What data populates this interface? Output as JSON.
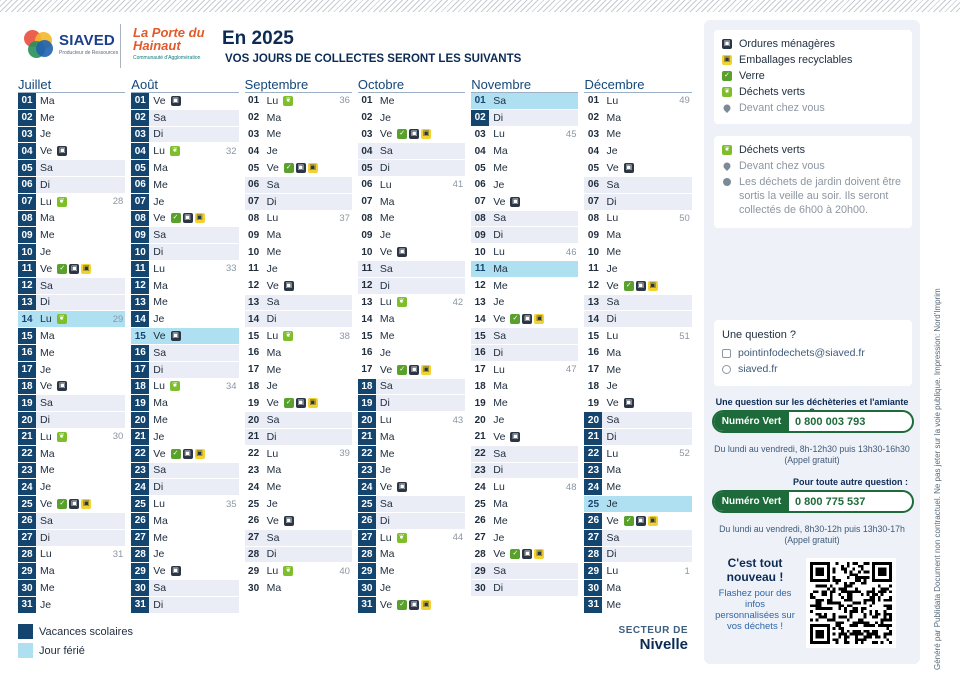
{
  "header": {
    "siaved_name": "SIAVED",
    "siaved_tagline": "Producteur de Ressources",
    "porte_title": "La Porte du Hainaut",
    "porte_sub": "Communauté d'Agglomération",
    "title": "En 2025",
    "subtitle": "VOS JOURS DE COLLECTES SERONT LES SUIVANTS"
  },
  "colors": {
    "vacances": "#14456f",
    "ferie": "#aee0f2",
    "weekend": "#eaecf6",
    "om": "#2b3544",
    "emb": "#f2d22e",
    "verre": "#5aa02c",
    "dv": "#7fbe2b"
  },
  "months": [
    {
      "name": "Juillet",
      "days": [
        [
          "01",
          "Ma",
          "",
          ""
        ],
        [
          "02",
          "Me",
          "",
          ""
        ],
        [
          "03",
          "Je",
          "",
          ""
        ],
        [
          "04",
          "Ve",
          "",
          "O"
        ],
        [
          "05",
          "Sa",
          "",
          ""
        ],
        [
          "06",
          "Di",
          "",
          ""
        ],
        [
          "07",
          "Lu",
          "28",
          "D"
        ],
        [
          "08",
          "Ma",
          "",
          ""
        ],
        [
          "09",
          "Me",
          "",
          ""
        ],
        [
          "10",
          "Je",
          "",
          ""
        ],
        [
          "11",
          "Ve",
          "",
          "VOE"
        ],
        [
          "12",
          "Sa",
          "",
          ""
        ],
        [
          "13",
          "Di",
          "",
          ""
        ],
        [
          "14",
          "Lu",
          "29",
          "D"
        ],
        [
          "15",
          "Ma",
          "",
          ""
        ],
        [
          "16",
          "Me",
          "",
          ""
        ],
        [
          "17",
          "Je",
          "",
          ""
        ],
        [
          "18",
          "Ve",
          "",
          "O"
        ],
        [
          "19",
          "Sa",
          "",
          ""
        ],
        [
          "20",
          "Di",
          "",
          ""
        ],
        [
          "21",
          "Lu",
          "30",
          "D"
        ],
        [
          "22",
          "Ma",
          "",
          ""
        ],
        [
          "23",
          "Me",
          "",
          ""
        ],
        [
          "24",
          "Je",
          "",
          ""
        ],
        [
          "25",
          "Ve",
          "",
          "VOE"
        ],
        [
          "26",
          "Sa",
          "",
          ""
        ],
        [
          "27",
          "Di",
          "",
          ""
        ],
        [
          "28",
          "Lu",
          "31",
          ""
        ],
        [
          "29",
          "Ma",
          "",
          ""
        ],
        [
          "30",
          "Me",
          "",
          ""
        ],
        [
          "31",
          "Je",
          "",
          ""
        ]
      ]
    },
    {
      "name": "Août",
      "days": [
        [
          "01",
          "Ve",
          "",
          "O"
        ],
        [
          "02",
          "Sa",
          "",
          ""
        ],
        [
          "03",
          "Di",
          "",
          ""
        ],
        [
          "04",
          "Lu",
          "32",
          "D"
        ],
        [
          "05",
          "Ma",
          "",
          ""
        ],
        [
          "06",
          "Me",
          "",
          ""
        ],
        [
          "07",
          "Je",
          "",
          ""
        ],
        [
          "08",
          "Ve",
          "",
          "VOE"
        ],
        [
          "09",
          "Sa",
          "",
          ""
        ],
        [
          "10",
          "Di",
          "",
          ""
        ],
        [
          "11",
          "Lu",
          "33",
          ""
        ],
        [
          "12",
          "Ma",
          "",
          ""
        ],
        [
          "13",
          "Me",
          "",
          ""
        ],
        [
          "14",
          "Je",
          "",
          ""
        ],
        [
          "15",
          "Ve",
          "",
          "O"
        ],
        [
          "16",
          "Sa",
          "",
          ""
        ],
        [
          "17",
          "Di",
          "",
          ""
        ],
        [
          "18",
          "Lu",
          "34",
          "D"
        ],
        [
          "19",
          "Ma",
          "",
          ""
        ],
        [
          "20",
          "Me",
          "",
          ""
        ],
        [
          "21",
          "Je",
          "",
          ""
        ],
        [
          "22",
          "Ve",
          "",
          "VOE"
        ],
        [
          "23",
          "Sa",
          "",
          ""
        ],
        [
          "24",
          "Di",
          "",
          ""
        ],
        [
          "25",
          "Lu",
          "35",
          ""
        ],
        [
          "26",
          "Ma",
          "",
          ""
        ],
        [
          "27",
          "Me",
          "",
          ""
        ],
        [
          "28",
          "Je",
          "",
          ""
        ],
        [
          "29",
          "Ve",
          "",
          "O"
        ],
        [
          "30",
          "Sa",
          "",
          ""
        ],
        [
          "31",
          "Di",
          "",
          ""
        ]
      ]
    },
    {
      "name": "Septembre",
      "days": [
        [
          "01",
          "Lu",
          "36",
          "D"
        ],
        [
          "02",
          "Ma",
          "",
          ""
        ],
        [
          "03",
          "Me",
          "",
          ""
        ],
        [
          "04",
          "Je",
          "",
          ""
        ],
        [
          "05",
          "Ve",
          "",
          "VOE"
        ],
        [
          "06",
          "Sa",
          "",
          ""
        ],
        [
          "07",
          "Di",
          "",
          ""
        ],
        [
          "08",
          "Lu",
          "37",
          ""
        ],
        [
          "09",
          "Ma",
          "",
          ""
        ],
        [
          "10",
          "Me",
          "",
          ""
        ],
        [
          "11",
          "Je",
          "",
          ""
        ],
        [
          "12",
          "Ve",
          "",
          "O"
        ],
        [
          "13",
          "Sa",
          "",
          ""
        ],
        [
          "14",
          "Di",
          "",
          ""
        ],
        [
          "15",
          "Lu",
          "38",
          "D"
        ],
        [
          "16",
          "Ma",
          "",
          ""
        ],
        [
          "17",
          "Me",
          "",
          ""
        ],
        [
          "18",
          "Je",
          "",
          ""
        ],
        [
          "19",
          "Ve",
          "",
          "VOE"
        ],
        [
          "20",
          "Sa",
          "",
          ""
        ],
        [
          "21",
          "Di",
          "",
          ""
        ],
        [
          "22",
          "Lu",
          "39",
          ""
        ],
        [
          "23",
          "Ma",
          "",
          ""
        ],
        [
          "24",
          "Me",
          "",
          ""
        ],
        [
          "25",
          "Je",
          "",
          ""
        ],
        [
          "26",
          "Ve",
          "",
          "O"
        ],
        [
          "27",
          "Sa",
          "",
          ""
        ],
        [
          "28",
          "Di",
          "",
          ""
        ],
        [
          "29",
          "Lu",
          "40",
          "D"
        ],
        [
          "30",
          "Ma",
          "",
          ""
        ]
      ]
    },
    {
      "name": "Octobre",
      "days": [
        [
          "01",
          "Me",
          "",
          ""
        ],
        [
          "02",
          "Je",
          "",
          ""
        ],
        [
          "03",
          "Ve",
          "",
          "VOE"
        ],
        [
          "04",
          "Sa",
          "",
          ""
        ],
        [
          "05",
          "Di",
          "",
          ""
        ],
        [
          "06",
          "Lu",
          "41",
          ""
        ],
        [
          "07",
          "Ma",
          "",
          ""
        ],
        [
          "08",
          "Me",
          "",
          ""
        ],
        [
          "09",
          "Je",
          "",
          ""
        ],
        [
          "10",
          "Ve",
          "",
          "O"
        ],
        [
          "11",
          "Sa",
          "",
          ""
        ],
        [
          "12",
          "Di",
          "",
          ""
        ],
        [
          "13",
          "Lu",
          "42",
          "D"
        ],
        [
          "14",
          "Ma",
          "",
          ""
        ],
        [
          "15",
          "Me",
          "",
          ""
        ],
        [
          "16",
          "Je",
          "",
          ""
        ],
        [
          "17",
          "Ve",
          "",
          "VOE"
        ],
        [
          "18",
          "Sa",
          "",
          ""
        ],
        [
          "19",
          "Di",
          "",
          ""
        ],
        [
          "20",
          "Lu",
          "43",
          ""
        ],
        [
          "21",
          "Ma",
          "",
          ""
        ],
        [
          "22",
          "Me",
          "",
          ""
        ],
        [
          "23",
          "Je",
          "",
          ""
        ],
        [
          "24",
          "Ve",
          "",
          "O"
        ],
        [
          "25",
          "Sa",
          "",
          ""
        ],
        [
          "26",
          "Di",
          "",
          ""
        ],
        [
          "27",
          "Lu",
          "44",
          "D"
        ],
        [
          "28",
          "Ma",
          "",
          ""
        ],
        [
          "29",
          "Me",
          "",
          ""
        ],
        [
          "30",
          "Je",
          "",
          ""
        ],
        [
          "31",
          "Ve",
          "",
          "VOE"
        ]
      ]
    },
    {
      "name": "Novembre",
      "days": [
        [
          "01",
          "Sa",
          "",
          ""
        ],
        [
          "02",
          "Di",
          "",
          ""
        ],
        [
          "03",
          "Lu",
          "45",
          ""
        ],
        [
          "04",
          "Ma",
          "",
          ""
        ],
        [
          "05",
          "Me",
          "",
          ""
        ],
        [
          "06",
          "Je",
          "",
          ""
        ],
        [
          "07",
          "Ve",
          "",
          "O"
        ],
        [
          "08",
          "Sa",
          "",
          ""
        ],
        [
          "09",
          "Di",
          "",
          ""
        ],
        [
          "10",
          "Lu",
          "46",
          ""
        ],
        [
          "11",
          "Ma",
          "",
          ""
        ],
        [
          "12",
          "Me",
          "",
          ""
        ],
        [
          "13",
          "Je",
          "",
          ""
        ],
        [
          "14",
          "Ve",
          "",
          "VOE"
        ],
        [
          "15",
          "Sa",
          "",
          ""
        ],
        [
          "16",
          "Di",
          "",
          ""
        ],
        [
          "17",
          "Lu",
          "47",
          ""
        ],
        [
          "18",
          "Ma",
          "",
          ""
        ],
        [
          "19",
          "Me",
          "",
          ""
        ],
        [
          "20",
          "Je",
          "",
          ""
        ],
        [
          "21",
          "Ve",
          "",
          "O"
        ],
        [
          "22",
          "Sa",
          "",
          ""
        ],
        [
          "23",
          "Di",
          "",
          ""
        ],
        [
          "24",
          "Lu",
          "48",
          ""
        ],
        [
          "25",
          "Ma",
          "",
          ""
        ],
        [
          "26",
          "Me",
          "",
          ""
        ],
        [
          "27",
          "Je",
          "",
          ""
        ],
        [
          "28",
          "Ve",
          "",
          "VOE"
        ],
        [
          "29",
          "Sa",
          "",
          ""
        ],
        [
          "30",
          "Di",
          "",
          ""
        ]
      ]
    },
    {
      "name": "Décembre",
      "days": [
        [
          "01",
          "Lu",
          "49",
          ""
        ],
        [
          "02",
          "Ma",
          "",
          ""
        ],
        [
          "03",
          "Me",
          "",
          ""
        ],
        [
          "04",
          "Je",
          "",
          ""
        ],
        [
          "05",
          "Ve",
          "",
          "O"
        ],
        [
          "06",
          "Sa",
          "",
          ""
        ],
        [
          "07",
          "Di",
          "",
          ""
        ],
        [
          "08",
          "Lu",
          "50",
          ""
        ],
        [
          "09",
          "Ma",
          "",
          ""
        ],
        [
          "10",
          "Me",
          "",
          ""
        ],
        [
          "11",
          "Je",
          "",
          ""
        ],
        [
          "12",
          "Ve",
          "",
          "VOE"
        ],
        [
          "13",
          "Sa",
          "",
          ""
        ],
        [
          "14",
          "Di",
          "",
          ""
        ],
        [
          "15",
          "Lu",
          "51",
          ""
        ],
        [
          "16",
          "Ma",
          "",
          ""
        ],
        [
          "17",
          "Me",
          "",
          ""
        ],
        [
          "18",
          "Je",
          "",
          ""
        ],
        [
          "19",
          "Ve",
          "",
          "O"
        ],
        [
          "20",
          "Sa",
          "",
          ""
        ],
        [
          "21",
          "Di",
          "",
          ""
        ],
        [
          "22",
          "Lu",
          "52",
          ""
        ],
        [
          "23",
          "Ma",
          "",
          ""
        ],
        [
          "24",
          "Me",
          "",
          ""
        ],
        [
          "25",
          "Je",
          "",
          ""
        ],
        [
          "26",
          "Ve",
          "",
          "VOE"
        ],
        [
          "27",
          "Sa",
          "",
          ""
        ],
        [
          "28",
          "Di",
          "",
          ""
        ],
        [
          "29",
          "Lu",
          "1",
          ""
        ],
        [
          "30",
          "Ma",
          "",
          ""
        ],
        [
          "31",
          "Me",
          "",
          ""
        ]
      ]
    }
  ],
  "legend": {
    "vacances": "Vacances scolaires",
    "ferie": "Jour férié"
  },
  "secteur": {
    "label": "SECTEUR DE",
    "name": "Nivelle"
  },
  "side": {
    "key": [
      "Ordures ménagères",
      "Emballages recyclables",
      "Verre",
      "Déchets verts",
      "Devant chez vous"
    ],
    "dv_title": "Déchets verts",
    "dv_where": "Devant chez vous",
    "dv_note": "Les déchets de jardin doivent être sortis la veille au soir. Ils seront collectés de 6h00 à 20h00.",
    "question": "Une question ?",
    "email": "pointinfodechets@siaved.fr",
    "site": "siaved.fr",
    "q1": "Une question sur les déchèteries et l'amiante ?",
    "nv_label": "Numéro Vert",
    "tel1": "0 800 003 793",
    "hours1": "Du lundi au vendredi, 8h-12h30 puis 13h30-16h30 (Appel gratuit)",
    "q2": "Pour toute autre question :",
    "tel2": "0 800 775 537",
    "hours2": "Du lundi au vendredi, 8h30-12h puis 13h30-17h (Appel gratuit)",
    "new_title": "C'est tout nouveau !",
    "new_text": "Flashez pour des infos personnalisées sur vos déchets !"
  },
  "vertical_text": "Généré par  Publidata Document non contractuel. Ne pas jeter sur la voie publique. Impression: Nord'Imprim"
}
